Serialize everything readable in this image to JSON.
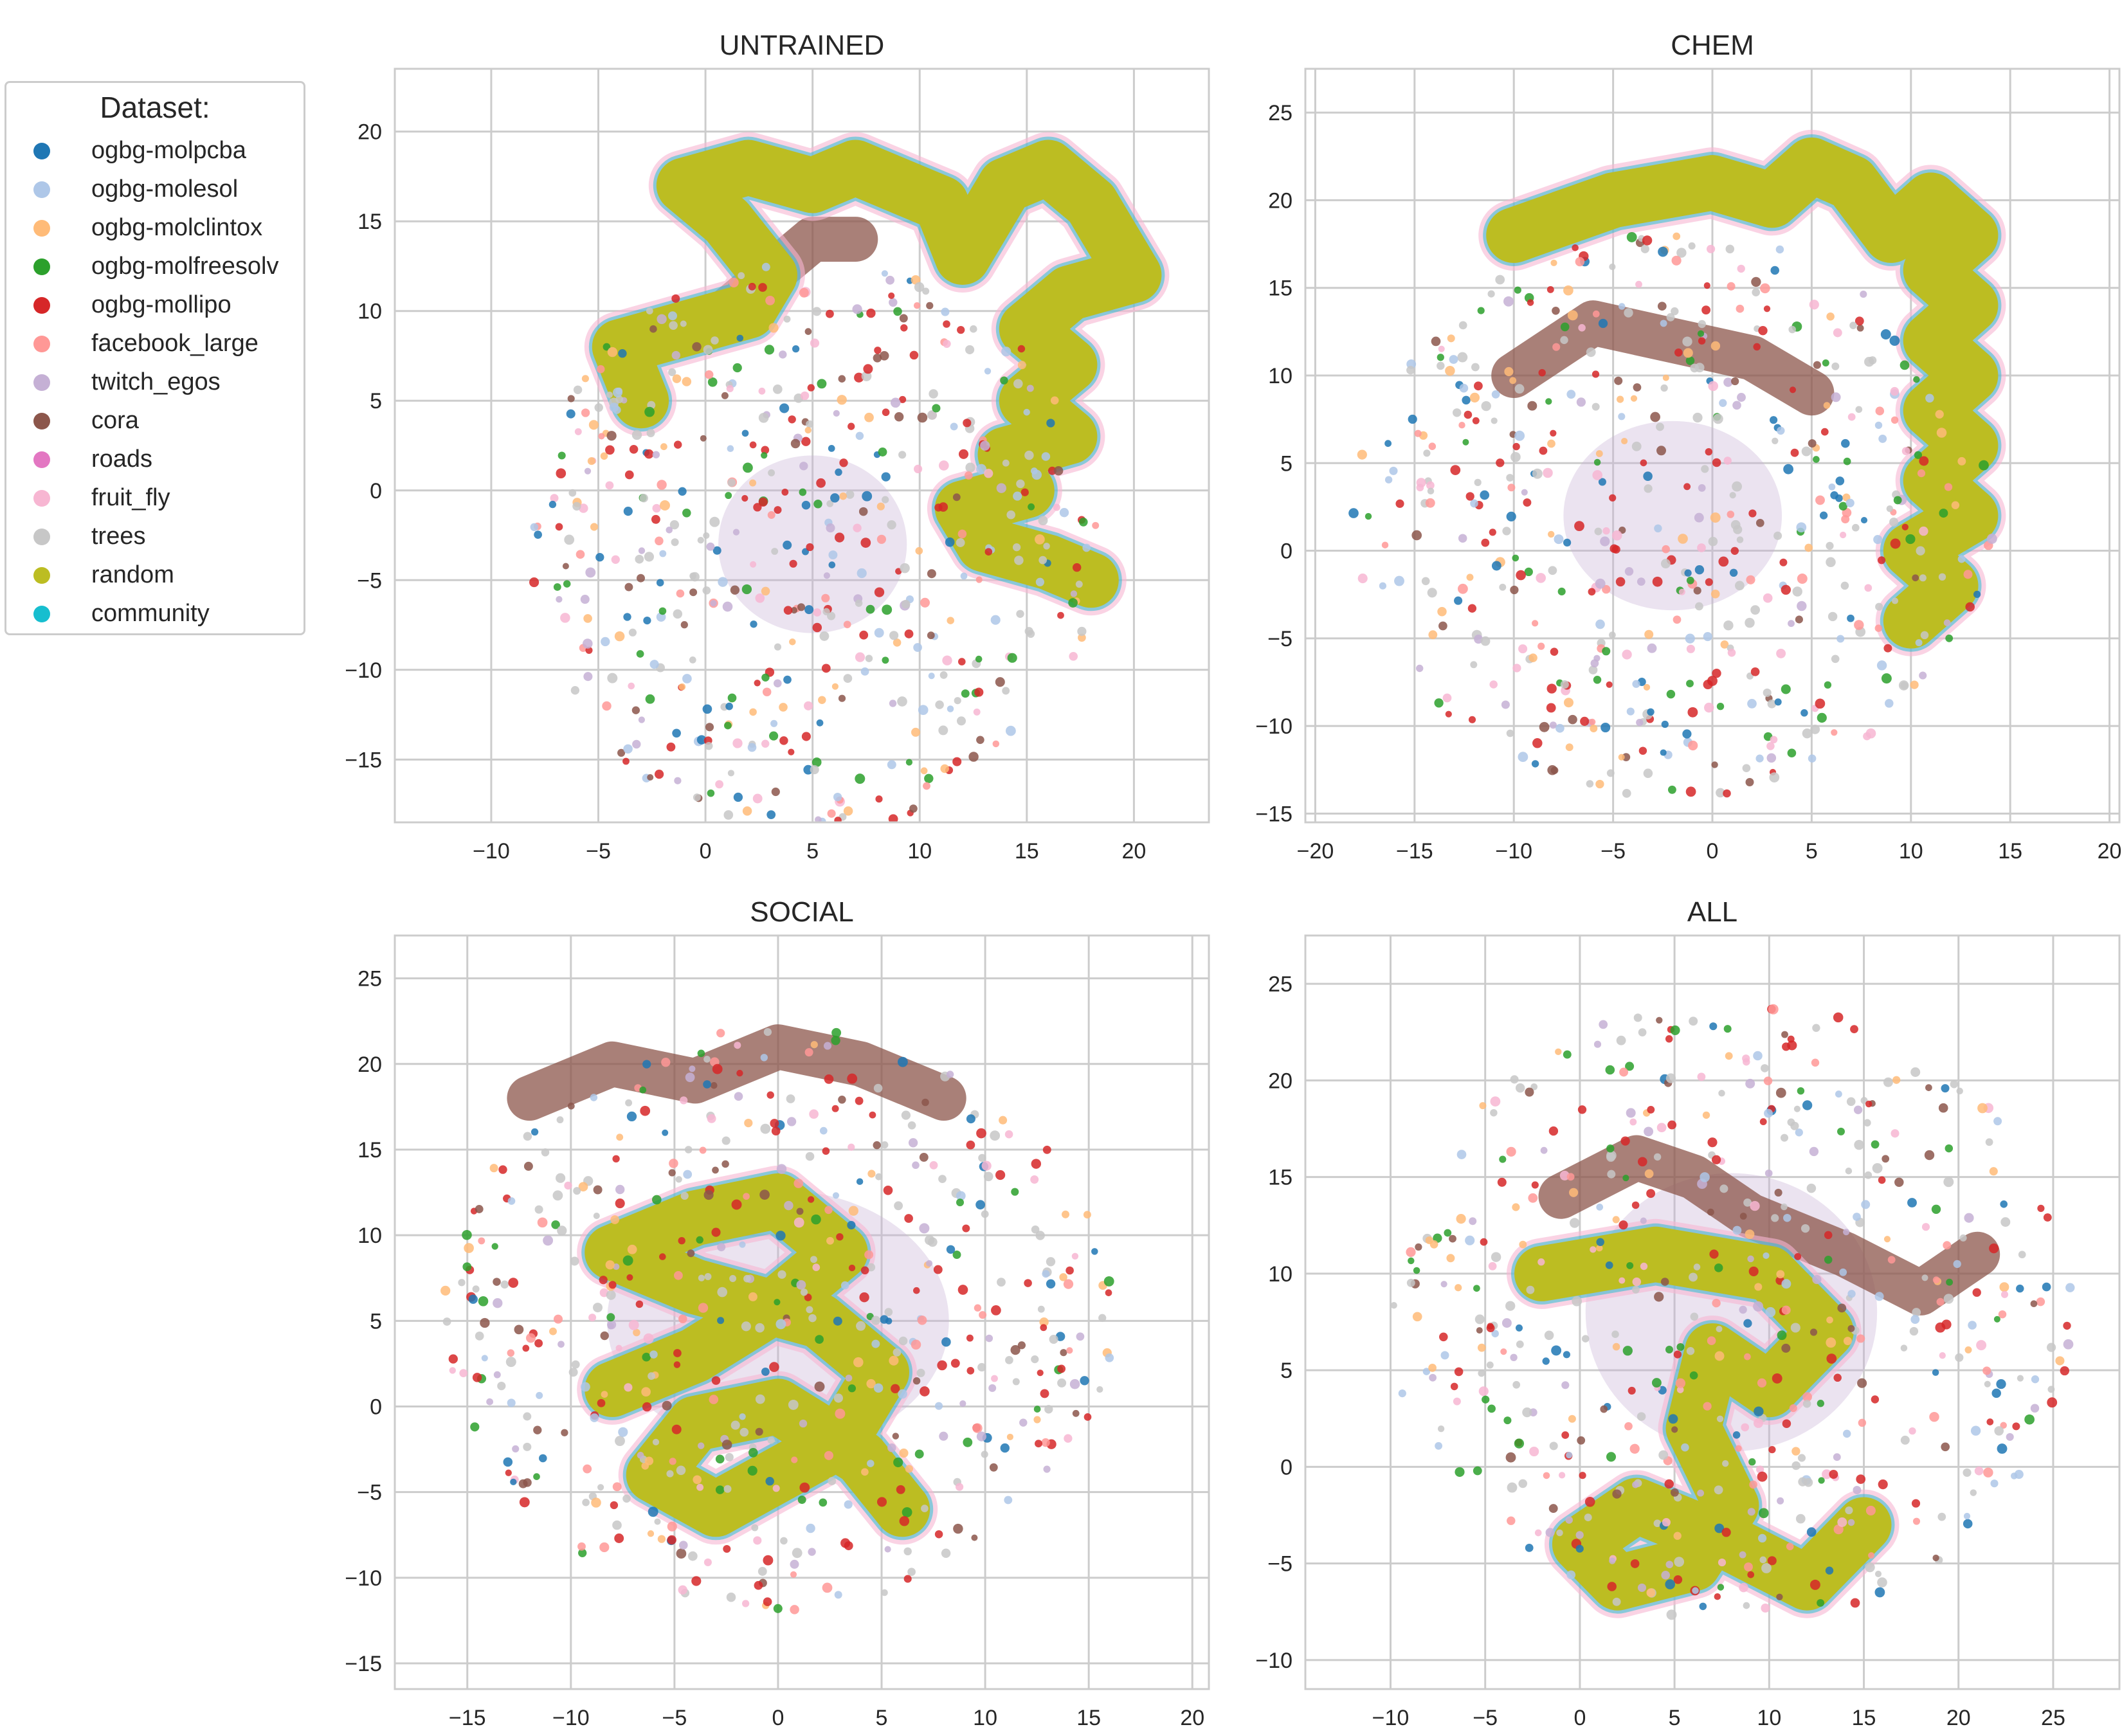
{
  "legend": {
    "title": "Dataset:",
    "items": [
      {
        "label": "ogbg-molpcba",
        "color": "#1f77b4"
      },
      {
        "label": "ogbg-molesol",
        "color": "#aec7e8"
      },
      {
        "label": "ogbg-molclintox",
        "color": "#ffbb78"
      },
      {
        "label": "ogbg-molfreesolv",
        "color": "#2ca02c"
      },
      {
        "label": "ogbg-mollipo",
        "color": "#d62728"
      },
      {
        "label": "facebook_large",
        "color": "#ff9896"
      },
      {
        "label": "twitch_egos",
        "color": "#c5b0d5"
      },
      {
        "label": "cora",
        "color": "#8c564b"
      },
      {
        "label": "roads",
        "color": "#e377c2"
      },
      {
        "label": "fruit_fly",
        "color": "#f7b6d2"
      },
      {
        "label": "trees",
        "color": "#c7c7c7"
      },
      {
        "label": "random",
        "color": "#bcbd22"
      },
      {
        "label": "community",
        "color": "#17becf"
      }
    ]
  },
  "chart_data": [
    {
      "type": "scatter",
      "title": "UNTRAINED",
      "xlim": [
        -14.5,
        23.5
      ],
      "ylim": [
        -18.5,
        23.5
      ],
      "xticks": [
        -10,
        -5,
        0,
        5,
        10,
        15,
        20
      ],
      "yticks": [
        -15,
        -10,
        -5,
        0,
        5,
        10,
        15,
        20
      ],
      "grid": true,
      "random_path": [
        [
          -3,
          5
        ],
        [
          -4,
          8
        ],
        [
          -1,
          9
        ],
        [
          2,
          10
        ],
        [
          3,
          12
        ],
        [
          1,
          15
        ],
        [
          -1,
          17
        ],
        [
          2,
          18
        ],
        [
          5,
          17
        ],
        [
          7,
          18
        ],
        [
          9,
          17
        ],
        [
          11,
          16
        ],
        [
          12,
          13
        ],
        [
          13,
          15
        ],
        [
          14,
          17
        ],
        [
          16,
          18
        ],
        [
          18,
          16
        ],
        [
          20,
          12
        ],
        [
          17,
          11
        ],
        [
          15,
          9
        ],
        [
          17,
          7
        ],
        [
          15,
          5
        ],
        [
          17,
          3
        ],
        [
          14,
          2
        ],
        [
          15,
          0
        ],
        [
          12,
          -1
        ],
        [
          13,
          -3
        ],
        [
          16,
          -4
        ],
        [
          18,
          -5
        ]
      ],
      "cora_path": [
        [
          0,
          9
        ],
        [
          3,
          12
        ],
        [
          5,
          14
        ],
        [
          7,
          14
        ]
      ],
      "blob_center": [
        5,
        -3
      ],
      "blob_radius": [
        8,
        11
      ],
      "scatter_radius": [
        14,
        17
      ]
    },
    {
      "type": "scatter",
      "title": "CHEM",
      "xlim": [
        -20.5,
        20.5
      ],
      "ylim": [
        -15.5,
        27.5
      ],
      "xticks": [
        -20,
        -15,
        -10,
        -5,
        0,
        5,
        10,
        15,
        20
      ],
      "yticks": [
        -15,
        -10,
        -5,
        0,
        5,
        10,
        15,
        20,
        25
      ],
      "grid": true,
      "random_path": [
        [
          -10,
          18
        ],
        [
          -5,
          20
        ],
        [
          0,
          21
        ],
        [
          3,
          20
        ],
        [
          5,
          22
        ],
        [
          7,
          21
        ],
        [
          9,
          18
        ],
        [
          11,
          20
        ],
        [
          13,
          18
        ],
        [
          11,
          16
        ],
        [
          13,
          14
        ],
        [
          11,
          12
        ],
        [
          13,
          10
        ],
        [
          11,
          8
        ],
        [
          13,
          6
        ],
        [
          11,
          4
        ],
        [
          13,
          2
        ],
        [
          10,
          0
        ],
        [
          12,
          -2
        ],
        [
          10,
          -4
        ]
      ],
      "cora_path": [
        [
          -10,
          10
        ],
        [
          -6,
          13
        ],
        [
          -2,
          12
        ],
        [
          2,
          11
        ],
        [
          5,
          9
        ]
      ],
      "blob_center": [
        -2,
        2
      ],
      "blob_radius": [
        10,
        12
      ],
      "scatter_radius": [
        17,
        17
      ]
    },
    {
      "type": "scatter",
      "title": "SOCIAL",
      "xlim": [
        -18.5,
        20.8
      ],
      "ylim": [
        -16.5,
        27.5
      ],
      "xticks": [
        -15,
        -10,
        -5,
        0,
        5,
        10,
        15,
        20
      ],
      "yticks": [
        -15,
        -10,
        -5,
        0,
        5,
        10,
        15,
        20,
        25
      ],
      "grid": true,
      "random_path": [
        [
          -8,
          1
        ],
        [
          -4,
          3
        ],
        [
          0,
          6
        ],
        [
          3,
          9
        ],
        [
          0,
          12
        ],
        [
          -4,
          11
        ],
        [
          -8,
          9
        ],
        [
          -4,
          7
        ],
        [
          2,
          5
        ],
        [
          5,
          2
        ],
        [
          3,
          -2
        ],
        [
          0,
          -4
        ],
        [
          -3,
          -6
        ],
        [
          -6,
          -4
        ],
        [
          -4,
          -1
        ],
        [
          0,
          0
        ],
        [
          4,
          -3
        ],
        [
          6,
          -6
        ]
      ],
      "cora_path": [
        [
          -12,
          18
        ],
        [
          -8,
          20
        ],
        [
          -4,
          19
        ],
        [
          0,
          21
        ],
        [
          4,
          20
        ],
        [
          8,
          18
        ]
      ],
      "blob_center": [
        0,
        5
      ],
      "blob_radius": [
        15,
        17
      ],
      "scatter_radius": [
        17,
        18
      ]
    },
    {
      "type": "scatter",
      "title": "ALL",
      "xlim": [
        -14.5,
        28.5
      ],
      "ylim": [
        -11.5,
        27.5
      ],
      "xticks": [
        -10,
        -5,
        0,
        5,
        10,
        15,
        20,
        25
      ],
      "yticks": [
        -10,
        -5,
        0,
        5,
        10,
        15,
        20,
        25
      ],
      "grid": true,
      "random_path": [
        [
          -2,
          10
        ],
        [
          4,
          11
        ],
        [
          10,
          10
        ],
        [
          13,
          7
        ],
        [
          10,
          4
        ],
        [
          7,
          6
        ],
        [
          6,
          2
        ],
        [
          8,
          -2
        ],
        [
          6,
          -5
        ],
        [
          2,
          -6
        ],
        [
          0,
          -4
        ],
        [
          3,
          -2
        ],
        [
          8,
          -4
        ],
        [
          12,
          -6
        ],
        [
          15,
          -3
        ]
      ],
      "cora_path": [
        [
          -1,
          14
        ],
        [
          3,
          16
        ],
        [
          6,
          15
        ],
        [
          9,
          13
        ],
        [
          14,
          11
        ],
        [
          18,
          9
        ],
        [
          21,
          11
        ]
      ],
      "blob_center": [
        8,
        8
      ],
      "blob_radius": [
        14,
        16
      ],
      "scatter_radius": [
        19,
        17
      ]
    }
  ]
}
